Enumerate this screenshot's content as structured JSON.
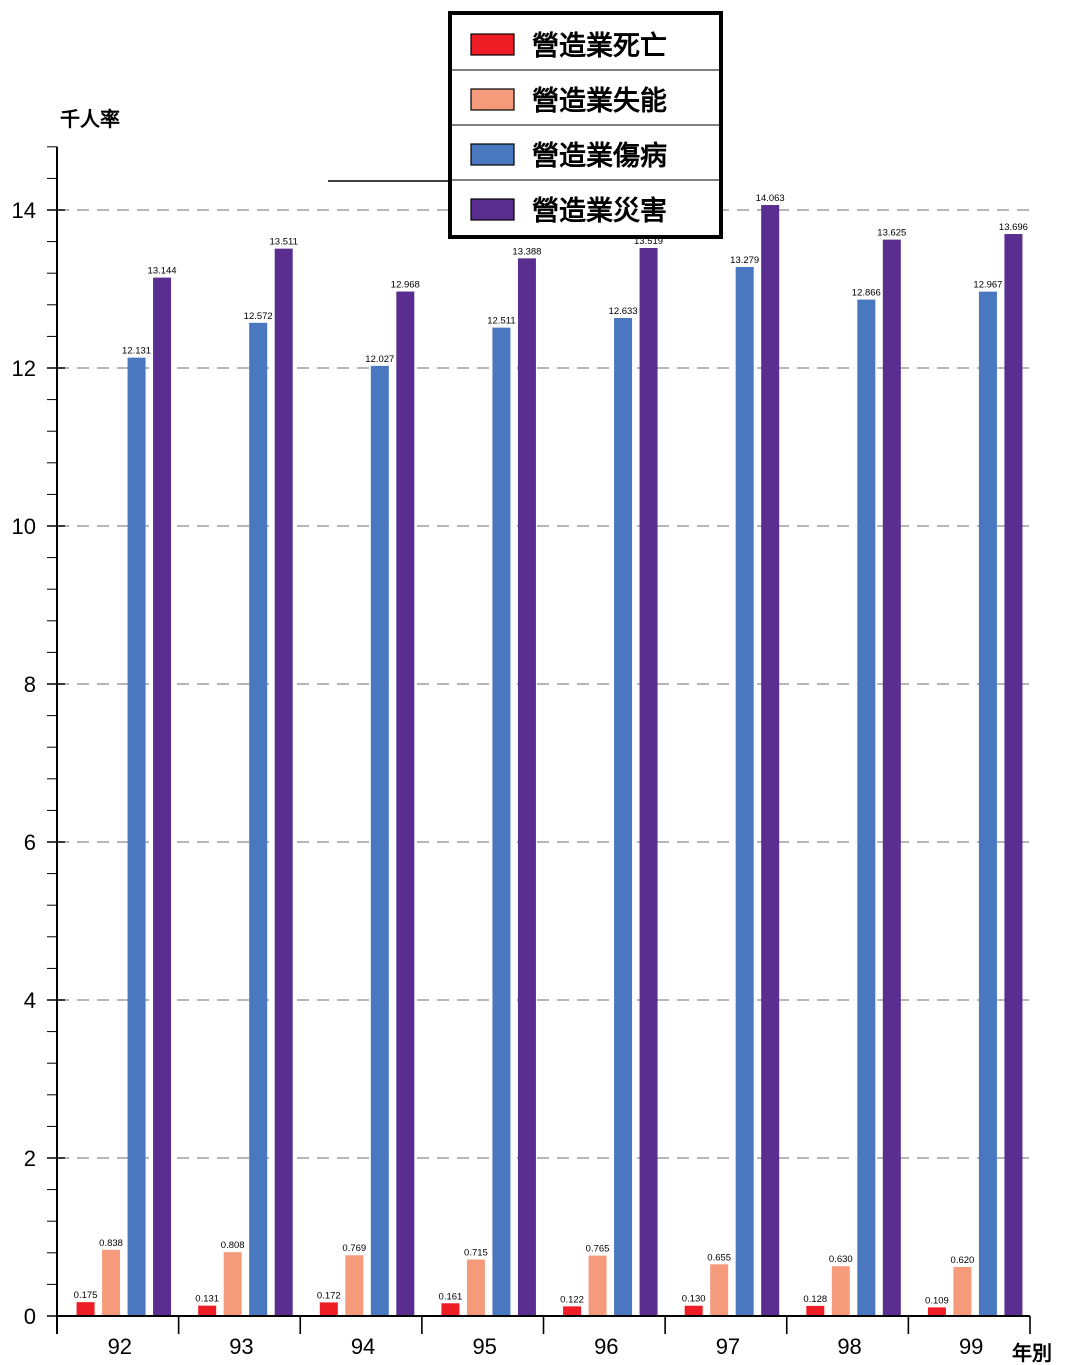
{
  "chart_data": {
    "type": "bar",
    "title": "",
    "ylabel": "千人率",
    "xlabel": "年別",
    "categories": [
      "92",
      "93",
      "94",
      "95",
      "96",
      "97",
      "98",
      "99"
    ],
    "ylim": [
      0,
      14.8
    ],
    "yticks": [
      "0",
      "2",
      "4",
      "6",
      "8",
      "10",
      "12",
      "14"
    ],
    "grid": true,
    "legend_position": "top-center",
    "series": [
      {
        "name": "營造業死亡",
        "color": "#ee1c25",
        "values": [
          0.175,
          0.131,
          0.172,
          0.161,
          0.122,
          0.13,
          0.128,
          0.109
        ],
        "labels": [
          "0.175",
          "0.131",
          "0.172",
          "0.161",
          "0.122",
          "0.130",
          "0.128",
          "0.109"
        ]
      },
      {
        "name": "營造業失能",
        "color": "#f69a7c",
        "values": [
          0.838,
          0.808,
          0.769,
          0.715,
          0.765,
          0.655,
          0.63,
          0.62
        ],
        "labels": [
          "0.838",
          "0.808",
          "0.769",
          "0.715",
          "0.765",
          "0.655",
          "0.630",
          "0.620"
        ]
      },
      {
        "name": "營造業傷病",
        "color": "#4a78c0",
        "values": [
          12.131,
          12.572,
          12.027,
          12.511,
          12.633,
          13.279,
          12.866,
          12.967
        ],
        "labels": [
          "12.131",
          "12.572",
          "12.027",
          "12.511",
          "12.633",
          "13.279",
          "12.866",
          "12.967"
        ]
      },
      {
        "name": "營造業災害",
        "color": "#5a2e91",
        "values": [
          13.144,
          13.511,
          12.968,
          13.388,
          13.519,
          14.063,
          13.625,
          13.696
        ],
        "labels": [
          "13.144",
          "13.511",
          "12.968",
          "13.388",
          "13.519",
          "14.063",
          "13.625",
          "13.696"
        ]
      }
    ]
  }
}
